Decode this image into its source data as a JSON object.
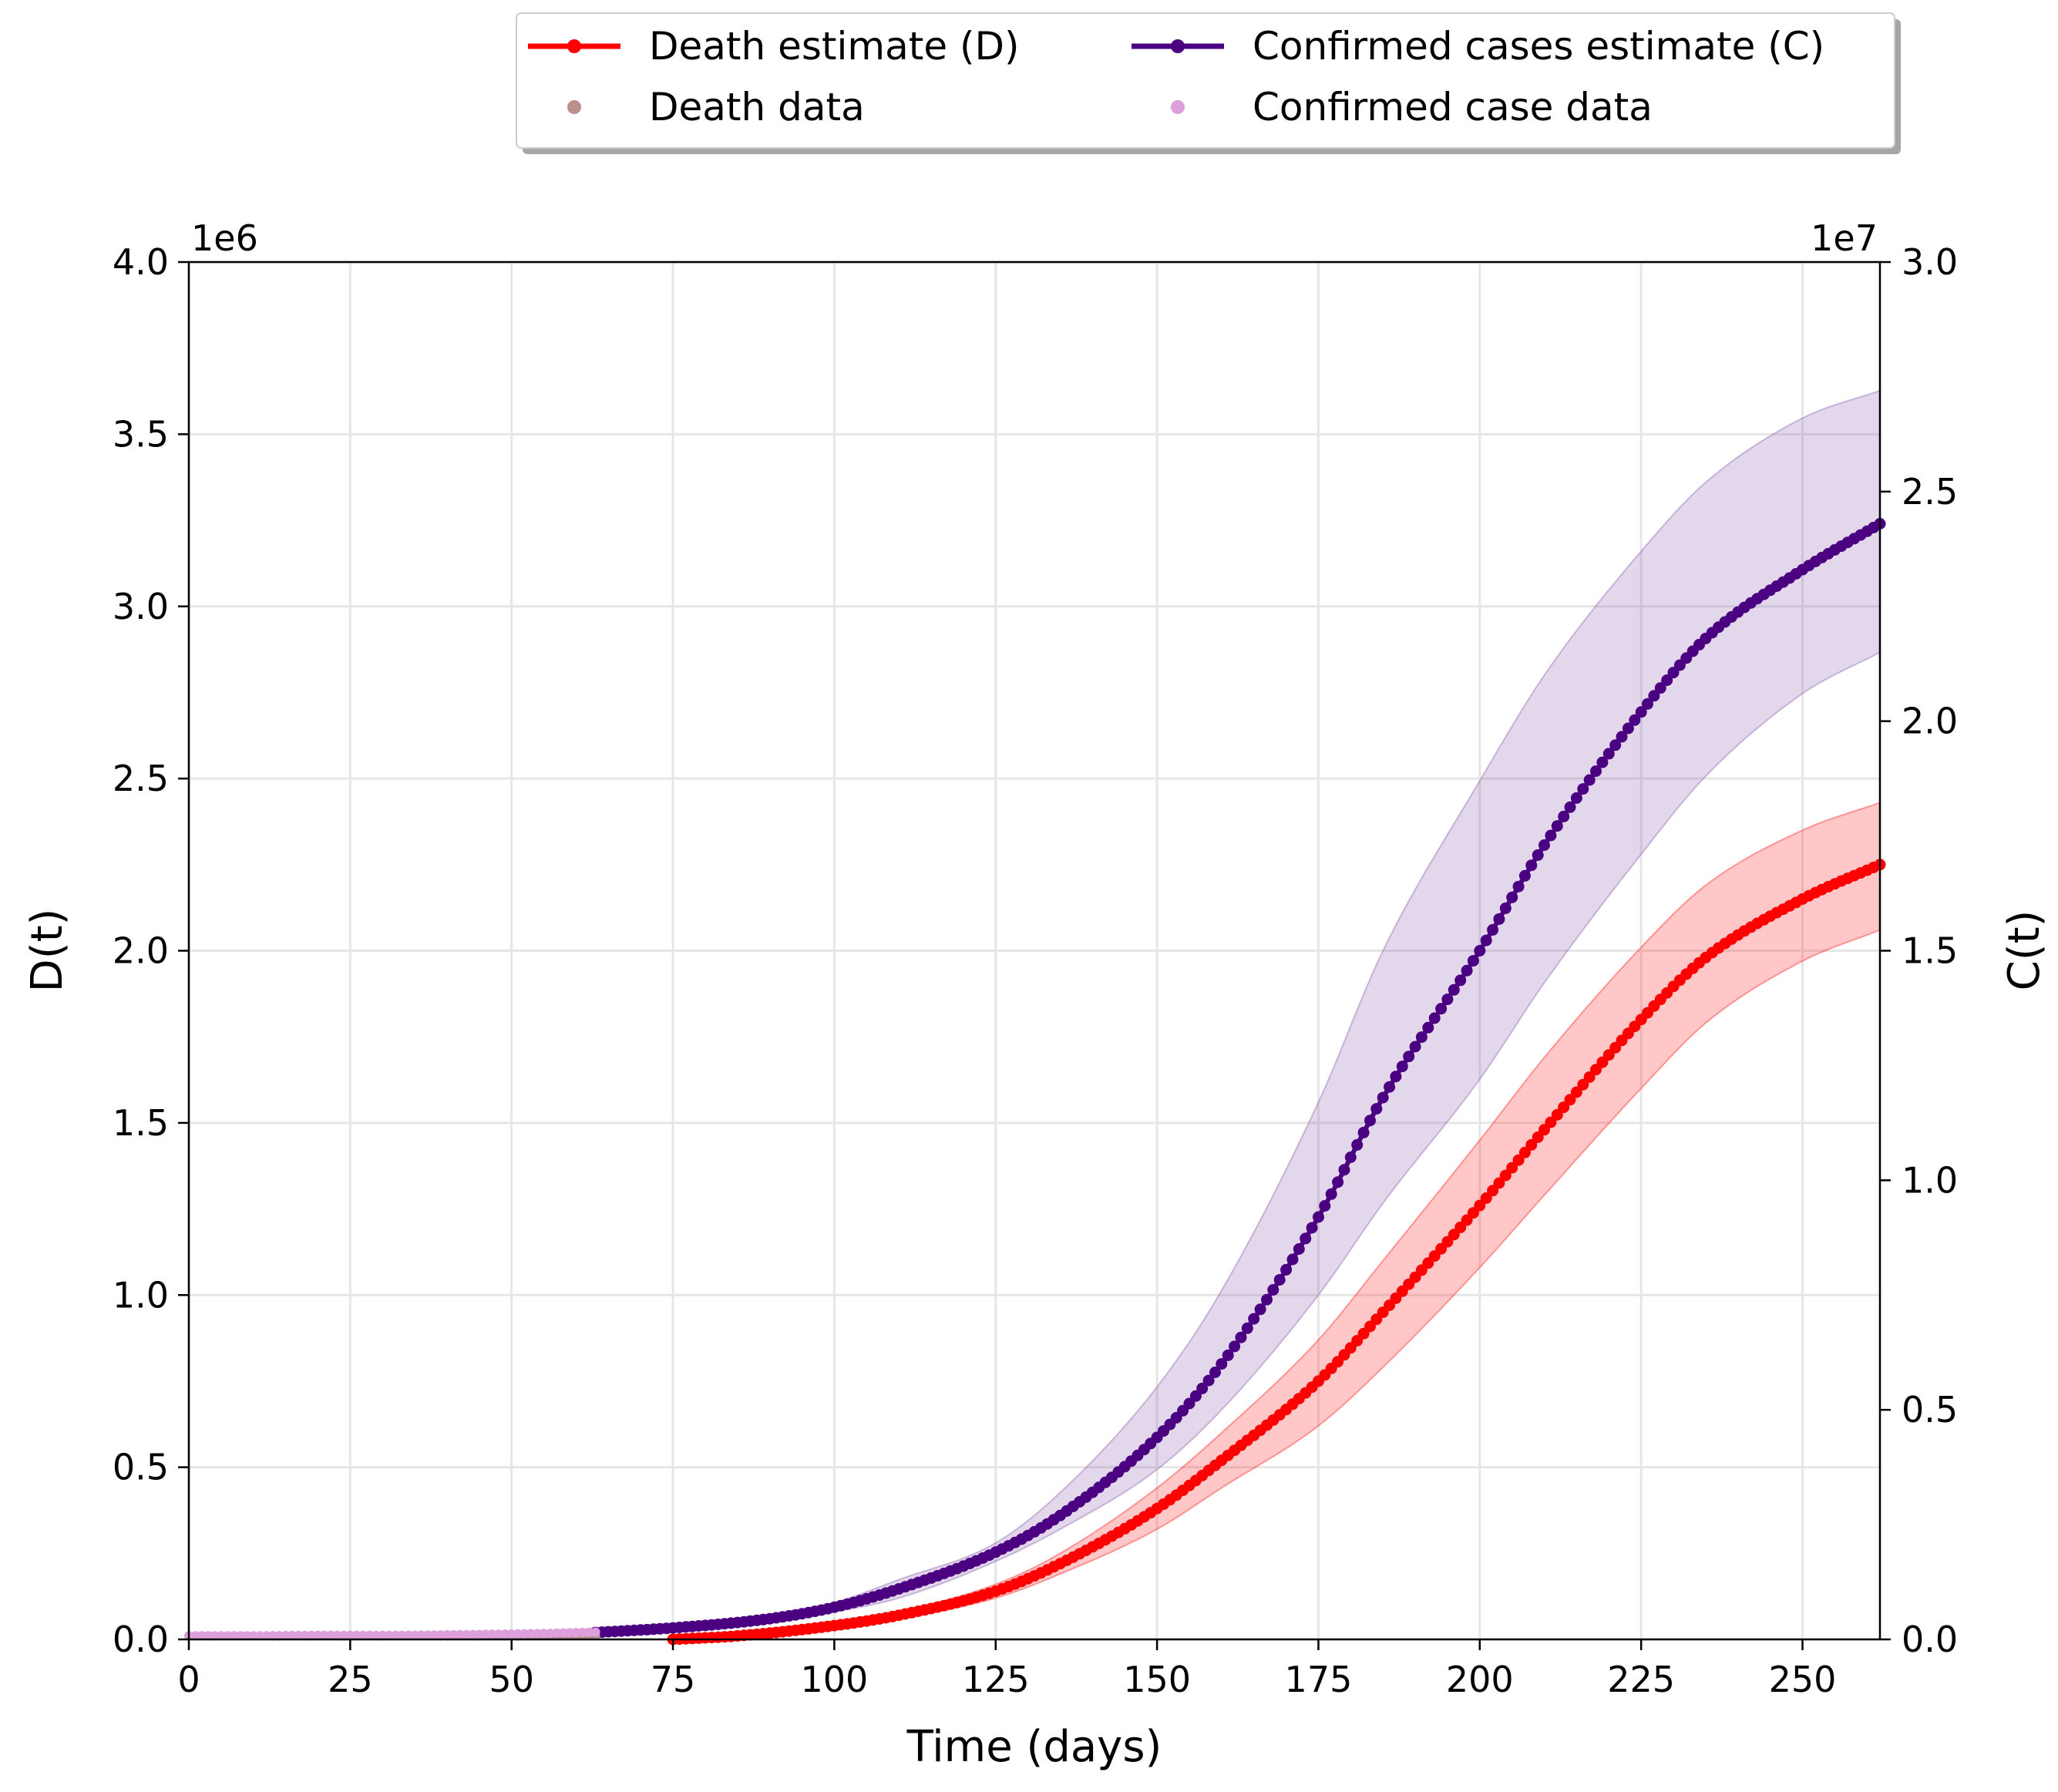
{
  "chart_data": {
    "type": "line",
    "xlabel": "Time (days)",
    "ylabel_left": "D(t)",
    "ylabel_right": "C(t)",
    "left_multiplier": "1e6",
    "right_multiplier": "1e7",
    "xlim": [
      0,
      262
    ],
    "ylim_left": [
      0,
      4.0
    ],
    "ylim_right": [
      0,
      3.0
    ],
    "x_ticks": [
      0,
      25,
      50,
      75,
      100,
      125,
      150,
      175,
      200,
      225,
      250
    ],
    "x_tick_labels": [
      "0",
      "25",
      "50",
      "75",
      "100",
      "125",
      "150",
      "175",
      "200",
      "225",
      "250"
    ],
    "y_left_ticks": [
      0,
      0.5,
      1.0,
      1.5,
      2.0,
      2.5,
      3.0,
      3.5,
      4.0
    ],
    "y_left_tick_labels": [
      "0.0",
      "0.5",
      "1.0",
      "1.5",
      "2.0",
      "2.5",
      "3.0",
      "3.5",
      "4.0"
    ],
    "y_right_ticks": [
      0,
      0.5,
      1.0,
      1.5,
      2.0,
      2.5,
      3.0
    ],
    "y_right_tick_labels": [
      "0.0",
      "0.5",
      "1.0",
      "1.5",
      "2.0",
      "2.5",
      "3.0"
    ],
    "grid": true,
    "legend_position": "top-right, above plot",
    "legend": [
      {
        "label": "Death estimate (D)",
        "kind": "line-marker",
        "color": "#ff0000"
      },
      {
        "label": "Confirmed cases estimate (C)",
        "kind": "line-marker",
        "color": "#4b0082"
      },
      {
        "label": "Death data",
        "kind": "marker",
        "color": "#bc8f8f"
      },
      {
        "label": "Confirmed case data",
        "kind": "marker",
        "color": "#dda0dd"
      }
    ],
    "series": [
      {
        "name": "Death estimate (D)",
        "axis": "left",
        "color": "#ff0000",
        "band_color": "#ff0000",
        "x": [
          75,
          85,
          100,
          110,
          125,
          135,
          150,
          160,
          175,
          185,
          200,
          210,
          225,
          235,
          250,
          262
        ],
        "y": [
          0.0,
          0.01,
          0.04,
          0.07,
          0.14,
          0.22,
          0.38,
          0.52,
          0.75,
          0.95,
          1.26,
          1.48,
          1.8,
          1.98,
          2.15,
          2.25
        ],
        "lower": [
          0.0,
          0.01,
          0.035,
          0.06,
          0.12,
          0.19,
          0.32,
          0.44,
          0.62,
          0.79,
          1.08,
          1.29,
          1.6,
          1.79,
          1.97,
          2.06
        ],
        "upper": [
          0.0,
          0.01,
          0.045,
          0.08,
          0.16,
          0.25,
          0.44,
          0.6,
          0.87,
          1.1,
          1.45,
          1.69,
          2.01,
          2.19,
          2.35,
          2.43
        ]
      },
      {
        "name": "Confirmed cases estimate (C)",
        "axis": "right",
        "color": "#4b0082",
        "band_color": "#7b4aa6",
        "x": [
          63,
          75,
          90,
          100,
          110,
          125,
          135,
          150,
          160,
          175,
          185,
          200,
          210,
          225,
          235,
          250,
          262
        ],
        "y": [
          0.015,
          0.025,
          0.045,
          0.07,
          0.11,
          0.19,
          0.27,
          0.44,
          0.6,
          0.92,
          1.18,
          1.5,
          1.73,
          2.02,
          2.18,
          2.33,
          2.43
        ],
        "lower": [
          0.015,
          0.022,
          0.04,
          0.06,
          0.09,
          0.17,
          0.24,
          0.37,
          0.5,
          0.75,
          0.95,
          1.22,
          1.43,
          1.71,
          1.88,
          2.06,
          2.15
        ],
        "upper": [
          0.015,
          0.028,
          0.05,
          0.08,
          0.13,
          0.21,
          0.32,
          0.55,
          0.76,
          1.17,
          1.5,
          1.87,
          2.1,
          2.37,
          2.52,
          2.66,
          2.72
        ]
      },
      {
        "name": "Death data",
        "axis": "left",
        "color": "#bc8f8f",
        "x": [
          0,
          63
        ],
        "y": [
          0.01,
          0.01
        ]
      },
      {
        "name": "Confirmed case data",
        "axis": "right",
        "color": "#dda0dd",
        "x": [
          0,
          10,
          20,
          30,
          40,
          50,
          55,
          60,
          63
        ],
        "y": [
          0.008,
          0.008,
          0.009,
          0.009,
          0.01,
          0.012,
          0.013,
          0.015,
          0.016
        ]
      }
    ]
  }
}
